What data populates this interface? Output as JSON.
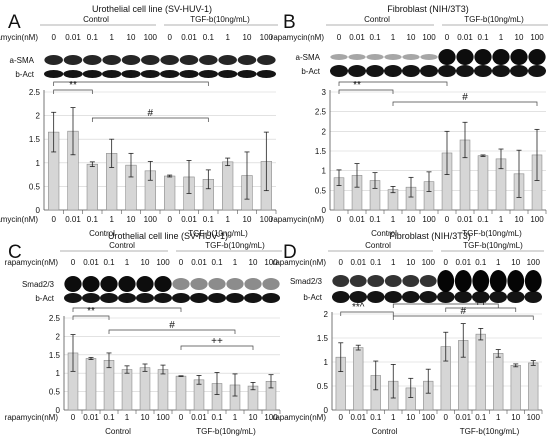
{
  "figure": {
    "rapamycin_label": "rapamycin(nM)",
    "dose_labels": [
      "0",
      "0.01",
      "0.1",
      "1",
      "10",
      "100"
    ],
    "control_label": "Control",
    "tgf_label": "TGF-b(10ng/mL)"
  },
  "panels": [
    {
      "letter": "A",
      "cell_title": "Urothelial cell line (SV-HUV-1)",
      "blot_labels": [
        "a-SMA",
        "b-Act"
      ],
      "chart_data": {
        "type": "bar",
        "title": "",
        "xlabel": "",
        "ylabel": "",
        "ylim": [
          0,
          2.5
        ],
        "yticks": [
          0,
          0.5,
          1,
          1.5,
          2,
          2.5
        ],
        "groups": [
          "Control",
          "TGF-b(10ng/mL)"
        ],
        "categories": [
          "0",
          "0.01",
          "0.1",
          "1",
          "10",
          "100",
          "0",
          "0.01",
          "0.1",
          "1",
          "10",
          "100"
        ],
        "values": [
          1.65,
          1.67,
          0.97,
          1.2,
          0.95,
          0.83,
          0.72,
          0.7,
          0.65,
          1.02,
          0.73,
          1.03
        ],
        "errors": [
          0.42,
          0.5,
          0.05,
          0.3,
          0.25,
          0.2,
          0.02,
          0.35,
          0.2,
          0.08,
          0.5,
          0.62
        ],
        "grid": true,
        "annotations": [
          "**",
          "*",
          "#"
        ]
      }
    },
    {
      "letter": "B",
      "cell_title": "Fibroblast (NIH/3T3)",
      "blot_labels": [
        "a-SMA",
        "b-Act"
      ],
      "chart_data": {
        "type": "bar",
        "title": "",
        "xlabel": "",
        "ylabel": "",
        "ylim": [
          0,
          3
        ],
        "yticks": [
          0,
          0.5,
          1,
          1.5,
          2,
          2.5,
          3
        ],
        "groups": [
          "Control",
          "TGF-b(10ng/mL)"
        ],
        "categories": [
          "0",
          "0.01",
          "0.1",
          "1",
          "10",
          "100",
          "0",
          "0.01",
          "0.1",
          "1",
          "10",
          "100"
        ],
        "values": [
          0.82,
          0.88,
          0.75,
          0.52,
          0.58,
          0.72,
          1.45,
          1.78,
          1.38,
          1.3,
          0.92,
          1.4
        ],
        "errors": [
          0.2,
          0.3,
          0.2,
          0.08,
          0.25,
          0.25,
          0.55,
          0.45,
          0.02,
          0.25,
          0.6,
          0.65
        ],
        "grid": true,
        "annotations": [
          "**",
          "*",
          "#"
        ]
      }
    },
    {
      "letter": "C",
      "cell_title": "Urothelial cell line (SV-HUV-1)",
      "blot_labels": [
        "Smad2/3",
        "b-Act"
      ],
      "chart_data": {
        "type": "bar",
        "title": "",
        "xlabel": "",
        "ylabel": "",
        "ylim": [
          0,
          2.5
        ],
        "yticks": [
          0,
          0.5,
          1,
          1.5,
          2,
          2.5
        ],
        "groups": [
          "Control",
          "TGF-b(10ng/mL)"
        ],
        "categories": [
          "0",
          "0.01",
          "0.1",
          "1",
          "10",
          "100",
          "0",
          "0.01",
          "0.1",
          "1",
          "10",
          "100"
        ],
        "values": [
          1.55,
          1.4,
          1.35,
          1.1,
          1.15,
          1.1,
          0.92,
          0.82,
          0.72,
          0.68,
          0.65,
          0.78
        ],
        "errors": [
          0.5,
          0.03,
          0.2,
          0.1,
          0.1,
          0.12,
          0.01,
          0.12,
          0.3,
          0.3,
          0.1,
          0.18
        ],
        "grid": true,
        "annotations": [
          "**",
          "*",
          "#",
          "++"
        ]
      }
    },
    {
      "letter": "D",
      "cell_title": "Fibroblast (NIH/3T3)",
      "blot_labels": [
        "Smad2/3",
        "b-Act"
      ],
      "chart_data": {
        "type": "bar",
        "title": "",
        "xlabel": "",
        "ylabel": "",
        "ylim": [
          0,
          2
        ],
        "yticks": [
          0,
          0.5,
          1,
          1.5,
          2
        ],
        "groups": [
          "Control",
          "TGF-b(10ng/mL)"
        ],
        "categories": [
          "0",
          "0.01",
          "0.1",
          "1",
          "10",
          "100",
          "0",
          "0.01",
          "0.1",
          "1",
          "10",
          "100"
        ],
        "values": [
          1.1,
          1.3,
          0.72,
          0.6,
          0.46,
          0.6,
          1.32,
          1.45,
          1.58,
          1.18,
          0.93,
          0.98
        ],
        "errors": [
          0.3,
          0.05,
          0.3,
          0.35,
          0.2,
          0.25,
          0.3,
          0.35,
          0.12,
          0.08,
          0.03,
          0.05
        ],
        "grid": true,
        "annotations": [
          "**^",
          "*^",
          "#",
          "++"
        ]
      }
    }
  ]
}
